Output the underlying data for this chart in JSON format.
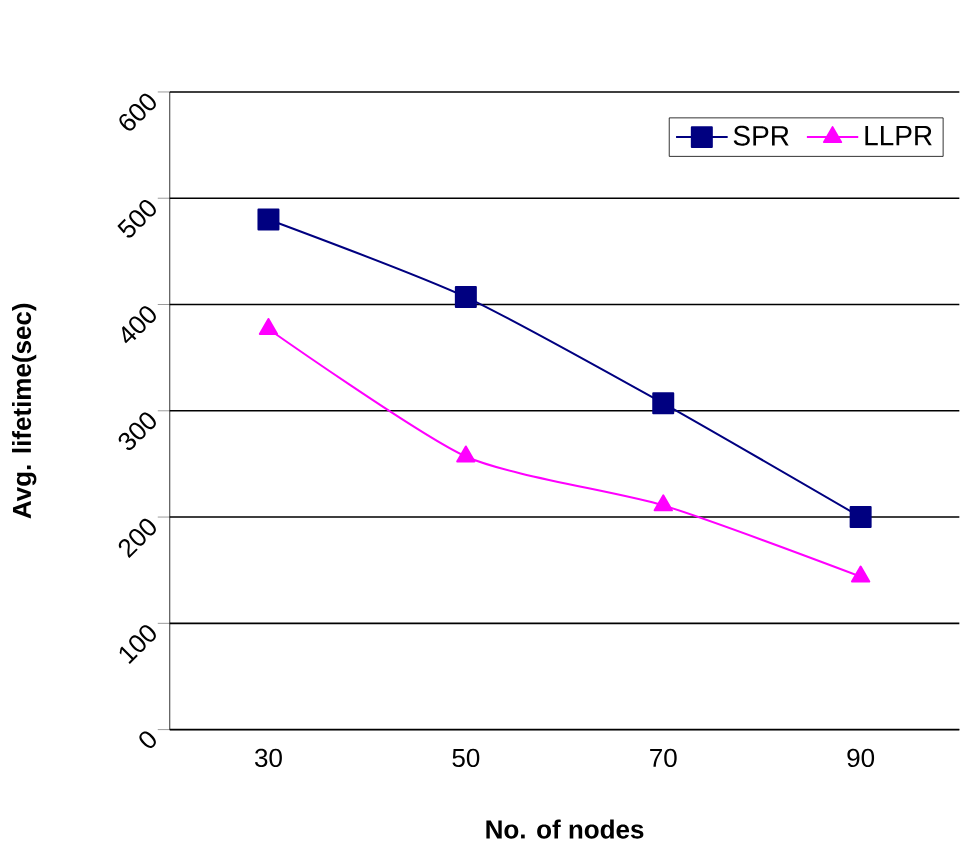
{
  "chart_data": {
    "type": "line",
    "xlabel": "No. of nodes",
    "ylabel": "Avg. lifetime(sec)",
    "categories": [
      "30",
      "50",
      "70",
      "90"
    ],
    "series": [
      {
        "name": "SPR",
        "color": "#000080",
        "marker": "square",
        "values": [
          480,
          407,
          307,
          200
        ]
      },
      {
        "name": "LLPR",
        "color": "#ff00ff",
        "marker": "triangle",
        "values": [
          377,
          257,
          211,
          144
        ]
      }
    ],
    "ylim": [
      0,
      600
    ],
    "yticks": [
      0,
      100,
      200,
      300,
      400,
      500,
      600
    ],
    "grid": "y",
    "legend": "top right",
    "line_style": "solid"
  }
}
